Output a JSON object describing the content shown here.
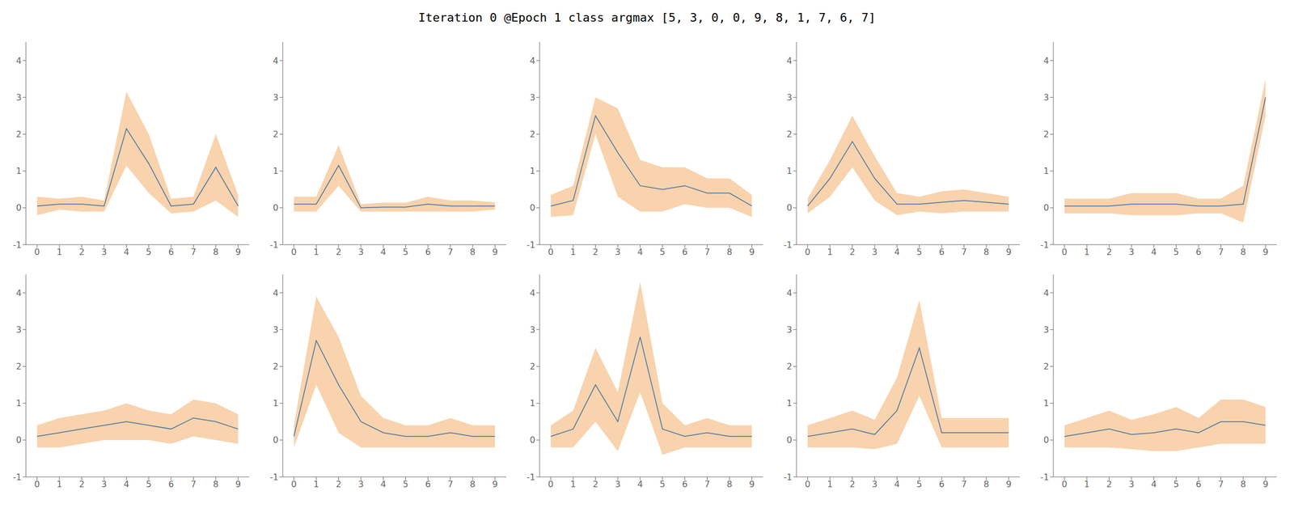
{
  "title": "Iteration 0 @Epoch 1 class argmax [5, 3, 0, 0, 9, 8, 1, 7, 6, 7]",
  "chart_data": [
    {
      "type": "line",
      "x": [
        0,
        1,
        2,
        3,
        4,
        5,
        6,
        7,
        8,
        9
      ],
      "xlim": [
        -0.5,
        9.5
      ],
      "xticks": [
        0,
        1,
        2,
        3,
        4,
        5,
        6,
        7,
        8,
        9
      ],
      "ylim": [
        -1,
        4.5
      ],
      "yticks": [
        -1,
        0,
        1,
        2,
        3,
        4
      ],
      "grid": false,
      "series": [
        {
          "type": "band",
          "color": "#f5c08a",
          "lower": [
            -0.2,
            -0.05,
            -0.1,
            -0.1,
            1.15,
            0.4,
            -0.15,
            -0.1,
            0.2,
            -0.25
          ],
          "upper": [
            0.3,
            0.25,
            0.3,
            0.2,
            3.15,
            2.0,
            0.25,
            0.3,
            2.0,
            0.35
          ]
        },
        {
          "type": "line",
          "color": "#4472a0",
          "values": [
            0.05,
            0.1,
            0.1,
            0.05,
            2.15,
            1.2,
            0.05,
            0.1,
            1.1,
            0.05
          ]
        }
      ]
    },
    {
      "type": "line",
      "x": [
        0,
        1,
        2,
        3,
        4,
        5,
        6,
        7,
        8,
        9
      ],
      "xlim": [
        -0.5,
        9.5
      ],
      "xticks": [
        0,
        1,
        2,
        3,
        4,
        5,
        6,
        7,
        8,
        9
      ],
      "ylim": [
        -1,
        4.5
      ],
      "yticks": [
        -1,
        0,
        1,
        2,
        3,
        4
      ],
      "grid": false,
      "series": [
        {
          "type": "band",
          "color": "#f5c08a",
          "lower": [
            -0.1,
            -0.1,
            0.6,
            -0.1,
            -0.1,
            -0.1,
            -0.1,
            -0.1,
            -0.1,
            -0.05
          ],
          "upper": [
            0.3,
            0.3,
            1.7,
            0.1,
            0.14,
            0.14,
            0.3,
            0.2,
            0.2,
            0.15
          ]
        },
        {
          "type": "line",
          "color": "#4472a0",
          "values": [
            0.1,
            0.1,
            1.15,
            0.0,
            0.02,
            0.02,
            0.1,
            0.05,
            0.05,
            0.05
          ]
        }
      ]
    },
    {
      "type": "line",
      "x": [
        0,
        1,
        2,
        3,
        4,
        5,
        6,
        7,
        8,
        9
      ],
      "xlim": [
        -0.5,
        9.5
      ],
      "xticks": [
        0,
        1,
        2,
        3,
        4,
        5,
        6,
        7,
        8,
        9
      ],
      "ylim": [
        -1,
        4.5
      ],
      "yticks": [
        -1,
        0,
        1,
        2,
        3,
        4
      ],
      "grid": false,
      "series": [
        {
          "type": "band",
          "color": "#f5c08a",
          "lower": [
            -0.25,
            -0.2,
            2.0,
            0.3,
            -0.1,
            -0.1,
            0.1,
            0.0,
            0.0,
            -0.25
          ],
          "upper": [
            0.35,
            0.6,
            3.0,
            2.7,
            1.3,
            1.1,
            1.1,
            0.8,
            0.8,
            0.35
          ]
        },
        {
          "type": "line",
          "color": "#4472a0",
          "values": [
            0.05,
            0.2,
            2.5,
            1.5,
            0.6,
            0.5,
            0.6,
            0.4,
            0.4,
            0.05
          ]
        }
      ]
    },
    {
      "type": "line",
      "x": [
        0,
        1,
        2,
        3,
        4,
        5,
        6,
        7,
        8,
        9
      ],
      "xlim": [
        -0.5,
        9.5
      ],
      "xticks": [
        0,
        1,
        2,
        3,
        4,
        5,
        6,
        7,
        8,
        9
      ],
      "ylim": [
        -1,
        4.5
      ],
      "yticks": [
        -1,
        0,
        1,
        2,
        3,
        4
      ],
      "grid": false,
      "series": [
        {
          "type": "band",
          "color": "#f5c08a",
          "lower": [
            -0.15,
            0.3,
            1.1,
            0.2,
            -0.2,
            -0.1,
            -0.15,
            -0.1,
            -0.1,
            -0.1
          ],
          "upper": [
            0.25,
            1.3,
            2.5,
            1.4,
            0.4,
            0.3,
            0.45,
            0.5,
            0.4,
            0.3
          ]
        },
        {
          "type": "line",
          "color": "#4472a0",
          "values": [
            0.05,
            0.8,
            1.8,
            0.8,
            0.1,
            0.1,
            0.15,
            0.2,
            0.15,
            0.1
          ]
        }
      ]
    },
    {
      "type": "line",
      "x": [
        0,
        1,
        2,
        3,
        4,
        5,
        6,
        7,
        8,
        9
      ],
      "xlim": [
        -0.5,
        9.5
      ],
      "xticks": [
        0,
        1,
        2,
        3,
        4,
        5,
        6,
        7,
        8,
        9
      ],
      "ylim": [
        -1,
        4.5
      ],
      "yticks": [
        -1,
        0,
        1,
        2,
        3,
        4
      ],
      "grid": false,
      "series": [
        {
          "type": "band",
          "color": "#f5c08a",
          "lower": [
            -0.15,
            -0.15,
            -0.15,
            -0.2,
            -0.2,
            -0.2,
            -0.15,
            -0.15,
            -0.4,
            2.5
          ],
          "upper": [
            0.25,
            0.25,
            0.25,
            0.4,
            0.4,
            0.4,
            0.25,
            0.25,
            0.6,
            3.5
          ]
        },
        {
          "type": "line",
          "color": "#4472a0",
          "values": [
            0.05,
            0.05,
            0.05,
            0.1,
            0.1,
            0.1,
            0.05,
            0.05,
            0.1,
            3.0
          ]
        }
      ]
    },
    {
      "type": "line",
      "x": [
        0,
        1,
        2,
        3,
        4,
        5,
        6,
        7,
        8,
        9
      ],
      "xlim": [
        -0.5,
        9.5
      ],
      "xticks": [
        0,
        1,
        2,
        3,
        4,
        5,
        6,
        7,
        8,
        9
      ],
      "ylim": [
        -1,
        4.5
      ],
      "yticks": [
        -1,
        0,
        1,
        2,
        3,
        4
      ],
      "grid": false,
      "series": [
        {
          "type": "band",
          "color": "#f5c08a",
          "lower": [
            -0.2,
            -0.2,
            -0.1,
            0.0,
            0.0,
            0.0,
            -0.1,
            0.1,
            0.0,
            -0.1
          ],
          "upper": [
            0.4,
            0.6,
            0.7,
            0.8,
            1.0,
            0.8,
            0.7,
            1.1,
            1.0,
            0.7
          ]
        },
        {
          "type": "line",
          "color": "#4472a0",
          "values": [
            0.1,
            0.2,
            0.3,
            0.4,
            0.5,
            0.4,
            0.3,
            0.6,
            0.5,
            0.3
          ]
        }
      ]
    },
    {
      "type": "line",
      "x": [
        0,
        1,
        2,
        3,
        4,
        5,
        6,
        7,
        8,
        9
      ],
      "xlim": [
        -0.5,
        9.5
      ],
      "xticks": [
        0,
        1,
        2,
        3,
        4,
        5,
        6,
        7,
        8,
        9
      ],
      "ylim": [
        -1,
        4.5
      ],
      "yticks": [
        -1,
        0,
        1,
        2,
        3,
        4
      ],
      "grid": false,
      "series": [
        {
          "type": "band",
          "color": "#f5c08a",
          "lower": [
            -0.2,
            1.5,
            0.2,
            -0.2,
            -0.2,
            -0.2,
            -0.2,
            -0.2,
            -0.2,
            -0.2
          ],
          "upper": [
            0.4,
            3.9,
            2.8,
            1.2,
            0.6,
            0.4,
            0.4,
            0.6,
            0.4,
            0.4
          ]
        },
        {
          "type": "line",
          "color": "#4472a0",
          "values": [
            0.1,
            2.7,
            1.5,
            0.5,
            0.2,
            0.1,
            0.1,
            0.2,
            0.1,
            0.1
          ]
        }
      ]
    },
    {
      "type": "line",
      "x": [
        0,
        1,
        2,
        3,
        4,
        5,
        6,
        7,
        8,
        9
      ],
      "xlim": [
        -0.5,
        9.5
      ],
      "xticks": [
        0,
        1,
        2,
        3,
        4,
        5,
        6,
        7,
        8,
        9
      ],
      "ylim": [
        -1,
        4.5
      ],
      "yticks": [
        -1,
        0,
        1,
        2,
        3,
        4
      ],
      "grid": false,
      "series": [
        {
          "type": "band",
          "color": "#f5c08a",
          "lower": [
            -0.2,
            -0.2,
            0.5,
            -0.3,
            1.3,
            -0.4,
            -0.2,
            -0.2,
            -0.2,
            -0.2
          ],
          "upper": [
            0.4,
            0.8,
            2.5,
            1.3,
            4.3,
            1.0,
            0.4,
            0.6,
            0.4,
            0.4
          ]
        },
        {
          "type": "line",
          "color": "#4472a0",
          "values": [
            0.1,
            0.3,
            1.5,
            0.5,
            2.8,
            0.3,
            0.1,
            0.2,
            0.1,
            0.1
          ]
        }
      ]
    },
    {
      "type": "line",
      "x": [
        0,
        1,
        2,
        3,
        4,
        5,
        6,
        7,
        8,
        9
      ],
      "xlim": [
        -0.5,
        9.5
      ],
      "xticks": [
        0,
        1,
        2,
        3,
        4,
        5,
        6,
        7,
        8,
        9
      ],
      "ylim": [
        -1,
        4.5
      ],
      "yticks": [
        -1,
        0,
        1,
        2,
        3,
        4
      ],
      "grid": false,
      "series": [
        {
          "type": "band",
          "color": "#f5c08a",
          "lower": [
            -0.2,
            -0.2,
            -0.2,
            -0.25,
            -0.1,
            1.2,
            -0.2,
            -0.2,
            -0.2,
            -0.2
          ],
          "upper": [
            0.4,
            0.6,
            0.8,
            0.55,
            1.7,
            3.8,
            0.6,
            0.6,
            0.6,
            0.6
          ]
        },
        {
          "type": "line",
          "color": "#4472a0",
          "values": [
            0.1,
            0.2,
            0.3,
            0.15,
            0.8,
            2.5,
            0.2,
            0.2,
            0.2,
            0.2
          ]
        }
      ]
    },
    {
      "type": "line",
      "x": [
        0,
        1,
        2,
        3,
        4,
        5,
        6,
        7,
        8,
        9
      ],
      "xlim": [
        -0.5,
        9.5
      ],
      "xticks": [
        0,
        1,
        2,
        3,
        4,
        5,
        6,
        7,
        8,
        9
      ],
      "ylim": [
        -1,
        4.5
      ],
      "yticks": [
        -1,
        0,
        1,
        2,
        3,
        4
      ],
      "grid": false,
      "series": [
        {
          "type": "band",
          "color": "#f5c08a",
          "lower": [
            -0.2,
            -0.2,
            -0.2,
            -0.25,
            -0.3,
            -0.3,
            -0.2,
            -0.1,
            -0.1,
            -0.1
          ],
          "upper": [
            0.4,
            0.6,
            0.8,
            0.55,
            0.7,
            0.9,
            0.6,
            1.1,
            1.1,
            0.9
          ]
        },
        {
          "type": "line",
          "color": "#4472a0",
          "values": [
            0.1,
            0.2,
            0.3,
            0.15,
            0.2,
            0.3,
            0.2,
            0.5,
            0.5,
            0.4
          ]
        }
      ]
    }
  ]
}
